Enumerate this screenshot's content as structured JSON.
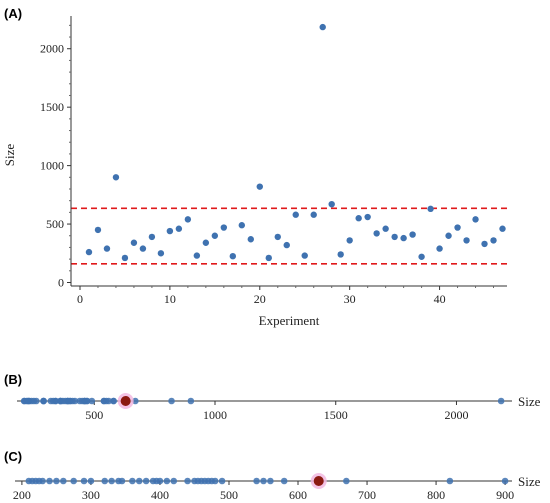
{
  "chart_data": [
    {
      "panel": "(A)",
      "type": "scatter",
      "xlabel": "Experiment",
      "ylabel": "Size",
      "xlim": [
        -1,
        47.5
      ],
      "ylim": [
        -30,
        2280
      ],
      "xticks": [
        0,
        10,
        20,
        30,
        40
      ],
      "yticks": [
        0,
        500,
        1000,
        1500,
        2000
      ],
      "point_color": "#3f72b0",
      "threshold_lines": [
        {
          "value": 160,
          "color": "#e0191b",
          "style": "dashed"
        },
        {
          "value": 635,
          "color": "#e0191b",
          "style": "dashed"
        }
      ],
      "x": [
        1,
        2,
        3,
        4,
        5,
        6,
        7,
        8,
        9,
        10,
        11,
        12,
        13,
        14,
        15,
        16,
        17,
        18,
        19,
        20,
        21,
        22,
        23,
        24,
        25,
        26,
        27,
        28,
        29,
        30,
        31,
        32,
        33,
        34,
        35,
        36,
        37,
        38,
        39,
        40,
        41,
        42,
        43,
        44,
        45,
        46,
        47
      ],
      "y": [
        260,
        450,
        290,
        900,
        210,
        340,
        290,
        390,
        250,
        440,
        460,
        540,
        230,
        340,
        400,
        470,
        225,
        490,
        370,
        820,
        210,
        390,
        320,
        580,
        230,
        580,
        2185,
        670,
        240,
        360,
        550,
        560,
        420,
        460,
        390,
        380,
        410,
        220,
        630,
        290,
        400,
        470,
        360,
        540,
        330,
        360,
        460
      ]
    },
    {
      "panel": "(B)",
      "type": "scatter",
      "xlabel": "Size",
      "xlim": [
        180,
        2230
      ],
      "xticks": [
        500,
        1000,
        1500,
        2000
      ],
      "point_color": "#3f72b0",
      "highlight": {
        "value": 630,
        "color": "#8b1a10",
        "halo_color": "#f2b8e0"
      },
      "values": [
        260,
        450,
        290,
        900,
        210,
        340,
        290,
        390,
        250,
        440,
        460,
        540,
        230,
        340,
        400,
        470,
        225,
        490,
        370,
        820,
        210,
        390,
        320,
        580,
        230,
        580,
        2185,
        670,
        240,
        360,
        550,
        560,
        420,
        460,
        390,
        380,
        410,
        220,
        290,
        400,
        470,
        360,
        540,
        330,
        360,
        460
      ]
    },
    {
      "panel": "(C)",
      "type": "scatter",
      "xlabel": "Size",
      "xlim": [
        190,
        910
      ],
      "xticks": [
        200,
        300,
        400,
        500,
        600,
        700,
        800,
        900
      ],
      "point_color": "#3f72b0",
      "highlight": {
        "value": 630,
        "color": "#8b1a10",
        "halo_color": "#f2b8e0"
      },
      "values": [
        210,
        215,
        220,
        225,
        230,
        240,
        250,
        260,
        275,
        290,
        300,
        320,
        330,
        340,
        345,
        360,
        370,
        380,
        390,
        395,
        400,
        410,
        420,
        440,
        450,
        455,
        460,
        465,
        470,
        475,
        480,
        490,
        540,
        550,
        560,
        580,
        670,
        820,
        900
      ]
    }
  ]
}
